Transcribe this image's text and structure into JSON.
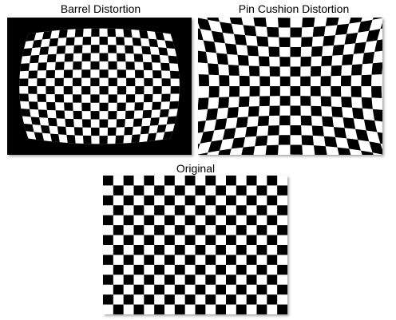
{
  "figure": {
    "panels": [
      {
        "id": "barrel",
        "label": "Barrel Distortion"
      },
      {
        "id": "pincushion",
        "label": "Pin Cushion Distortion"
      },
      {
        "id": "original",
        "label": "Original"
      }
    ],
    "checkerboard": {
      "columns": 18,
      "rows": 14,
      "color_dark": "#000000",
      "color_light": "#ffffff"
    }
  }
}
